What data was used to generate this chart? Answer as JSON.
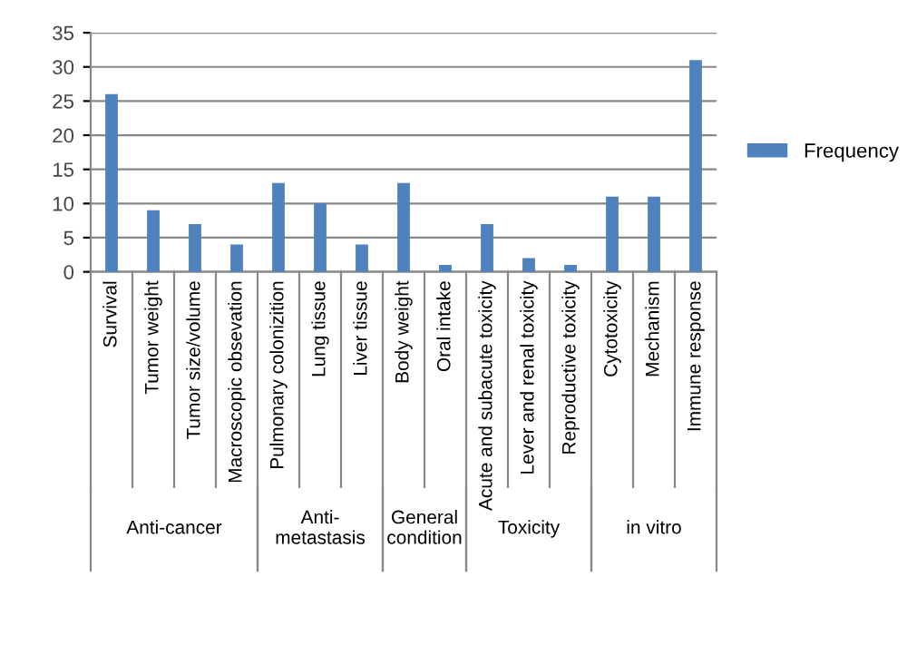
{
  "chart_data": {
    "type": "bar",
    "categories": [
      "Survival",
      "Tumor weight",
      "Tumor size/volume",
      "Macroscopic obsevation",
      "Pulmonary colonizition",
      "Lung tissue",
      "Liver tissue",
      "Body weight",
      "Oral intake",
      "Acute and subacute toxicity",
      "Lever and renal toxicity",
      "Reproductive toxicity",
      "Cytotoxicity",
      "Mechanism",
      "Immune response"
    ],
    "series": [
      {
        "name": "Frequency",
        "color": "#4f81bd",
        "values": [
          26,
          9,
          7,
          4,
          13,
          10,
          4,
          13,
          1,
          7,
          2,
          1,
          11,
          11,
          31
        ]
      }
    ],
    "annotations": [
      "Anti-cancer",
      "Anti-\nmetastasis",
      "General\ncondition",
      "Toxicity",
      "in vitro"
    ],
    "ylim": [
      0,
      35
    ],
    "yticks": [
      0,
      5,
      10,
      15,
      20,
      25,
      30,
      35
    ],
    "grid": "y",
    "legend": "right"
  }
}
